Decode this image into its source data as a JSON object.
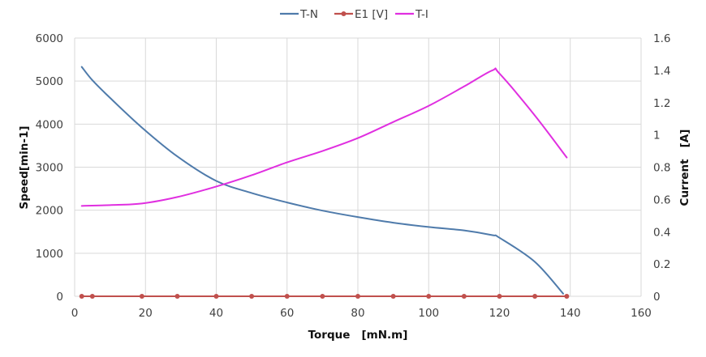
{
  "chart_data": {
    "type": "line",
    "xlabel": "Torque   [mN.m]",
    "ylabel": "Speed[min-1]",
    "y2label": "Current   [A]",
    "xlim": [
      0,
      160
    ],
    "ylim": [
      0,
      6000
    ],
    "y2lim": [
      0,
      1.6
    ],
    "xticks": [
      "0",
      "20",
      "40",
      "60",
      "80",
      "100",
      "120",
      "140",
      "160"
    ],
    "yticks": [
      "0",
      "1000",
      "2000",
      "3000",
      "4000",
      "5000",
      "6000"
    ],
    "y2ticks": [
      "0",
      "0.2",
      "0.4",
      "0.6",
      "0.8",
      "1",
      "1.2",
      "1.4",
      "1.6"
    ],
    "grid": true,
    "legend_position": "top",
    "series": [
      {
        "name": "T-N",
        "axis": "left",
        "color": "#4f7bab",
        "markers": false,
        "x": [
          2,
          5,
          10,
          19,
          29,
          40,
          50,
          60,
          70,
          80,
          90,
          100,
          110,
          118,
          120,
          130,
          138
        ],
        "y": [
          5330,
          5020,
          4610,
          3920,
          3250,
          2680,
          2400,
          2180,
          1990,
          1840,
          1710,
          1610,
          1530,
          1420,
          1360,
          800,
          60
        ]
      },
      {
        "name": "E1 [V]",
        "axis": "right",
        "color": "#c0504d",
        "markers": true,
        "x": [
          2,
          5,
          19,
          29,
          40,
          50,
          60,
          70,
          80,
          90,
          100,
          110,
          120,
          130,
          139
        ],
        "y": [
          0,
          0,
          0,
          0,
          0,
          0,
          0,
          0,
          0,
          0,
          0,
          0,
          0,
          0,
          0
        ]
      },
      {
        "name": "T-I",
        "axis": "right",
        "color": "#e02fe0",
        "markers": false,
        "x": [
          2,
          10,
          19,
          29,
          40,
          50,
          60,
          70,
          80,
          90,
          100,
          110,
          118,
          120,
          130,
          139
        ],
        "y": [
          0.56,
          0.565,
          0.575,
          0.615,
          0.68,
          0.75,
          0.83,
          0.9,
          0.98,
          1.08,
          1.18,
          1.3,
          1.4,
          1.38,
          1.12,
          0.86
        ]
      }
    ]
  }
}
